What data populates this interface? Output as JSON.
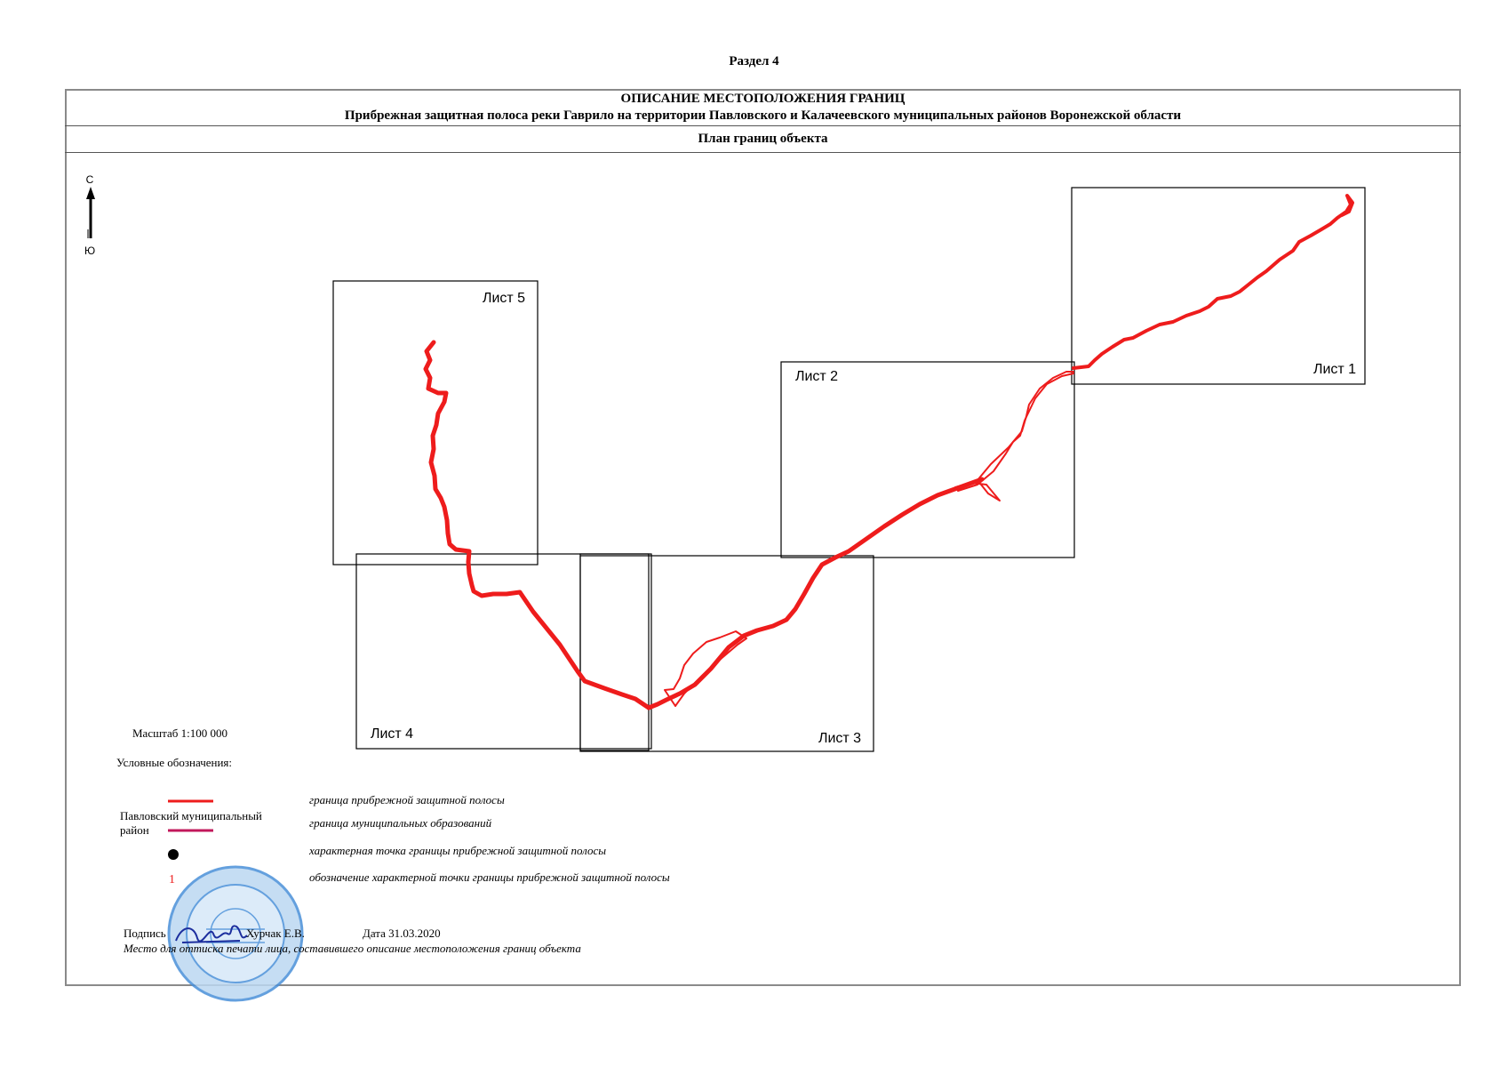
{
  "header": {
    "section": "Раздел 4",
    "title": "ОПИСАНИЕ МЕСТОПОЛОЖЕНИЯ ГРАНИЦ",
    "subtitle": "Прибрежная защитная полоса реки Гаврило на территории Павловского и Калачеевского муниципальных районов Воронежской области",
    "plan_title": "План границ объекта"
  },
  "compass": {
    "north": "С",
    "south": "Ю"
  },
  "sheets": [
    {
      "label": "Лист 1"
    },
    {
      "label": "Лист 2"
    },
    {
      "label": "Лист 3"
    },
    {
      "label": "Лист 4"
    },
    {
      "label": "Лист 5"
    }
  ],
  "scale": "Масштаб 1:100 000",
  "legend": {
    "title": "Условные обозначения:",
    "items": [
      {
        "symbol": "red-line",
        "text": "граница прибрежной защитной полосы"
      },
      {
        "symbol": "magenta-line",
        "label": "Павловский муниципальный район",
        "text": "граница муниципальных образований"
      },
      {
        "symbol": "black-dot",
        "text": "характерная точка границы прибрежной защитной полосы"
      },
      {
        "symbol": "red-number",
        "marker": "1",
        "text": "обозначение характерной точки границы прибрежной защитной полосы"
      }
    ]
  },
  "footer": {
    "signature_label": "Подпись",
    "signer": "Хурчак Е.В.",
    "date": "Дата 31.03.2020",
    "stamp_note": "Место для оттиска печати лица, составившего описание местоположения границ объекта"
  },
  "colors": {
    "boundary": "#ee1c1c",
    "municipal": "#c2185b",
    "frame": "#8a8a8a",
    "stamp": "#4a90d9"
  }
}
